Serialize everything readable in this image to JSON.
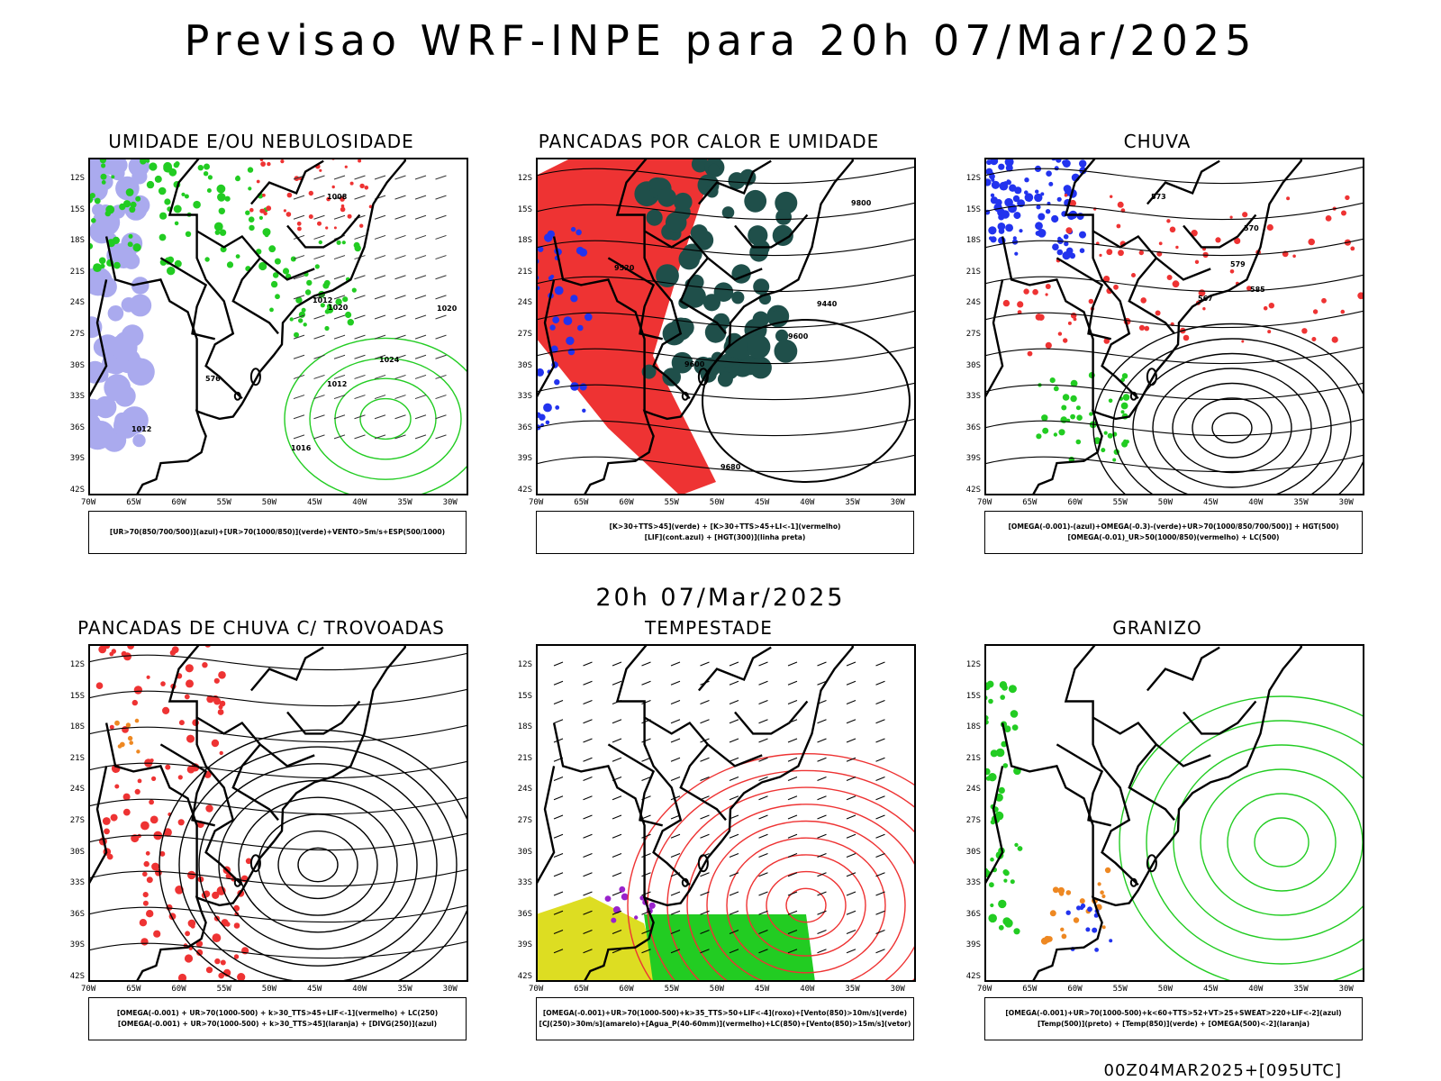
{
  "title": "Previsao WRF-INPE  para 20h 07/Mar/2025",
  "subtitle": "20h 07/Mar/2025",
  "footer": "00Z04MAR2025+[095UTC]",
  "axes": {
    "lat_labels": [
      "12S",
      "15S",
      "18S",
      "21S",
      "24S",
      "27S",
      "30S",
      "33S",
      "36S",
      "39S",
      "42S"
    ],
    "lon_labels": [
      "70W",
      "65W",
      "60W",
      "55W",
      "50W",
      "45W",
      "40W",
      "35W",
      "30W"
    ]
  },
  "colors": {
    "green": "#22cc22",
    "red": "#ee3333",
    "blue": "#2233ee",
    "lavender": "#aaaaee",
    "darkgreen": "#1f4f4a",
    "yellow": "#dddd22",
    "orange": "#ee8822",
    "purple": "#9922cc"
  },
  "panels": [
    {
      "id": "umidade",
      "title": "UMIDADE E/OU NEBULOSIDADE",
      "legend": [
        "[UR>70(850/700/500)](azul)+[UR>70(1000/850)](verde)+VENTO>5m/s+ESP(500/1000)"
      ],
      "contour_labels": [
        "1012",
        "1012",
        "1016",
        "1020",
        "1020",
        "1024",
        "1008",
        "576",
        "1012"
      ]
    },
    {
      "id": "pancadas_calor",
      "title": "PANCADAS POR CALOR E UMIDADE",
      "legend": [
        "[K>30+TTS>45](verde) + [K>30+TTS>45+LI<-1](vermelho)",
        "[LIF](cont.azul) + [HGT(300)](linha preta)"
      ],
      "contour_labels": [
        "9600",
        "9800",
        "9680",
        "9520",
        "9440",
        "9600"
      ]
    },
    {
      "id": "chuva",
      "title": "CHUVA",
      "legend": [
        "[OMEGA(-0.001)-(azul)+OMEGA(-0.3)-(verde)+UR>70(1000/850/700/500)] + HGT(500)",
        "[OMEGA(-0.01)_UR>50(1000/850)(vermelho) + LC(500)"
      ],
      "contour_labels": [
        "585",
        "579",
        "573",
        "570",
        "567"
      ]
    },
    {
      "id": "trovoadas",
      "title": "PANCADAS DE CHUVA C/ TROVOADAS",
      "legend": [
        "[OMEGA(-0.001) + UR>70(1000-500) + k>30_TTS>45+LIF<-1](vermelho) + LC(250)",
        "[OMEGA(-0.001) + UR>70(1000-500) + k>30_TTS>45](laranja) + [DIVG(250)](azul)"
      ],
      "contour_labels": []
    },
    {
      "id": "tempestade",
      "title": "TEMPESTADE",
      "legend": [
        "[OMEGA(-0.001)+UR>70(1000-500)+k>35_TTS>50+LIF<-4](roxo)+[Vento(850)>10m/s](verde)",
        "[CJ(250)>30m/s](amarelo)+[Agua_P(40-60mm)](vermelho)+LC(850)+[Vento(850)>15m/s](vetor)"
      ],
      "contour_labels": []
    },
    {
      "id": "granizo",
      "title": "GRANIZO",
      "legend": [
        "[OMEGA(-0.001)+UR>70(1000-500)+k<60+TTS>52+VT>25+SWEAT>220+LIF<-2](azul)",
        "[Temp(500)](preto) + [Temp(850)](verde) + [OMEGA(500)<-2](laranja)"
      ],
      "contour_labels": []
    }
  ]
}
